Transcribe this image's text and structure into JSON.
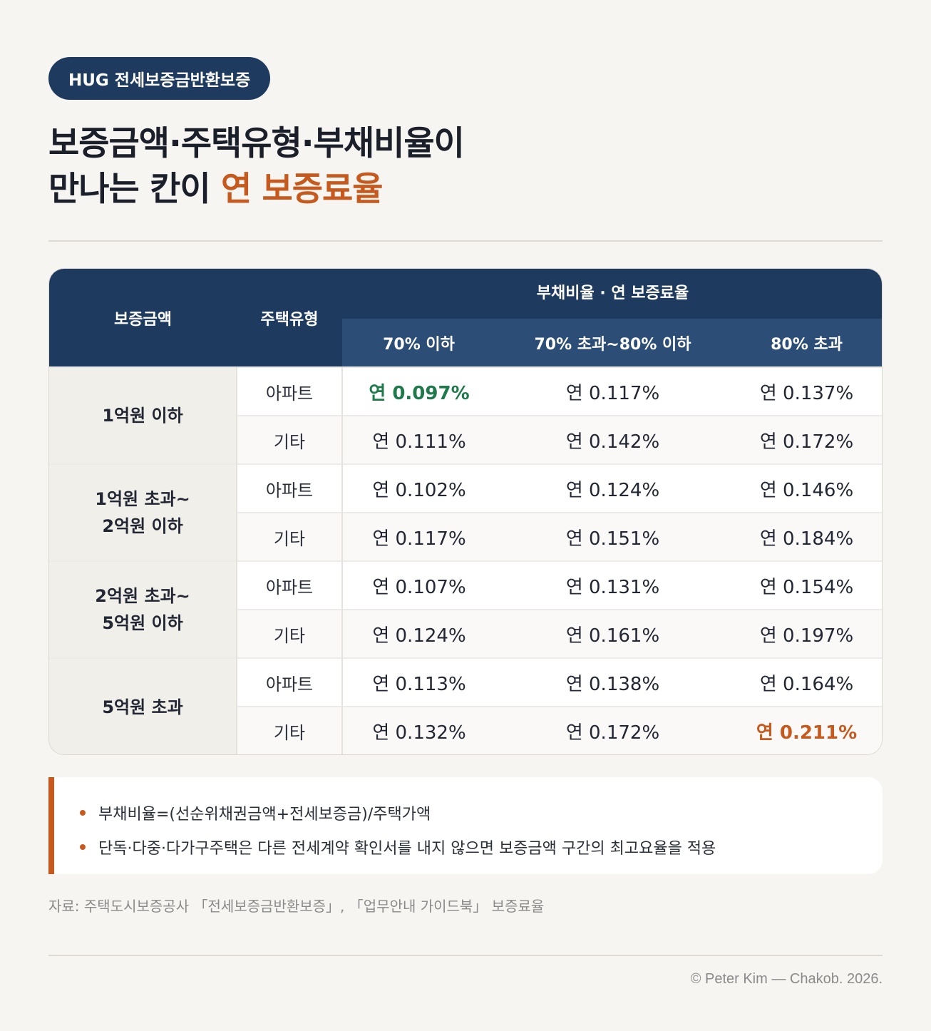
{
  "badge": "HUG 전세보증금반환보증",
  "title": {
    "line1": "보증금액·주택유형·부채비율이",
    "line2_prefix": "만나는 칸이 ",
    "line2_accent": "연 보증료율"
  },
  "table": {
    "header": {
      "amount": "보증금액",
      "type": "주택유형",
      "group": "부채비율 · 연 보증료율",
      "cols": [
        "70% 이하",
        "70% 초과~80% 이하",
        "80% 초과"
      ]
    },
    "groups": [
      {
        "amount_line1": "1억원 이하",
        "amount_line2": "",
        "rows": [
          {
            "type": "아파트",
            "rates": [
              "연 0.097%",
              "연 0.117%",
              "연 0.137%"
            ]
          },
          {
            "type": "기타",
            "rates": [
              "연 0.111%",
              "연 0.142%",
              "연 0.172%"
            ]
          }
        ]
      },
      {
        "amount_line1": "1억원 초과~",
        "amount_line2": "2억원 이하",
        "rows": [
          {
            "type": "아파트",
            "rates": [
              "연 0.102%",
              "연 0.124%",
              "연 0.146%"
            ]
          },
          {
            "type": "기타",
            "rates": [
              "연 0.117%",
              "연 0.151%",
              "연 0.184%"
            ]
          }
        ]
      },
      {
        "amount_line1": "2억원 초과~",
        "amount_line2": "5억원 이하",
        "rows": [
          {
            "type": "아파트",
            "rates": [
              "연 0.107%",
              "연 0.131%",
              "연 0.154%"
            ]
          },
          {
            "type": "기타",
            "rates": [
              "연 0.124%",
              "연 0.161%",
              "연 0.197%"
            ]
          }
        ]
      },
      {
        "amount_line1": "5억원 초과",
        "amount_line2": "",
        "rows": [
          {
            "type": "아파트",
            "rates": [
              "연 0.113%",
              "연 0.138%",
              "연 0.164%"
            ]
          },
          {
            "type": "기타",
            "rates": [
              "연 0.132%",
              "연 0.172%",
              "연 0.211%"
            ]
          }
        ]
      }
    ],
    "colors": {
      "lowest": "#1e7a4a",
      "highest": "#c65a1e",
      "header": "#1e3a5f",
      "subheader": "#2c4e76"
    }
  },
  "notes": [
    "부채비율=(선순위채권금액+전세보증금)/주택가액",
    "단독·다중·다가구주택은 다른 전세계약 확인서를 내지 않으면 보증금액 구간의 최고요율을 적용"
  ],
  "source": "자료: 주택도시보증공사 「전세보증금반환보증」, 「업무안내 가이드북」 보증료율",
  "credit": "© Peter Kim — Chakob. 2026."
}
